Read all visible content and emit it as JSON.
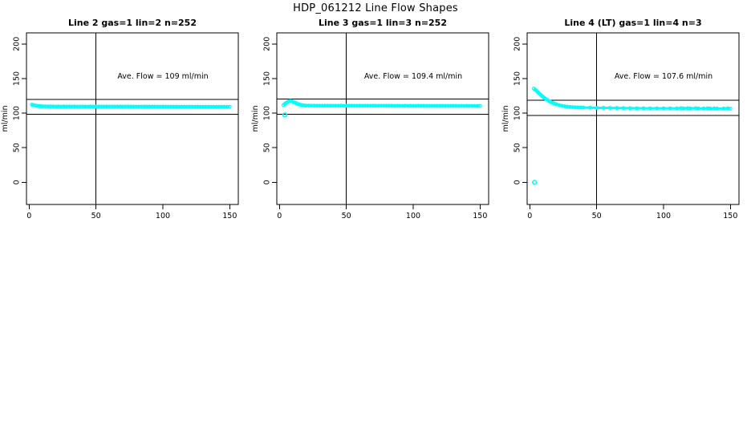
{
  "window": {
    "background": "#ffffff"
  },
  "chart_data": {
    "type": "scatter",
    "title": "HDP_061212  Line Flow Shapes",
    "xlabel": "",
    "ylabel": "ml/min",
    "point_color": "#00ffff",
    "axis_color": "#000000",
    "marker": "open-circle",
    "grid": false,
    "xticks": [
      0,
      50,
      100,
      150
    ],
    "yticks": [
      0,
      50,
      100,
      150,
      200
    ],
    "xlim": [
      -2,
      156.4
    ],
    "ylim": [
      -32,
      216
    ],
    "panels": [
      {
        "title": "Line 2 gas=1 lin=2 n=252",
        "ave_flow": 109,
        "ave_flow_label": "Ave. Flow =  109  ml/min",
        "label_pos": [
          100,
          150
        ],
        "ref_lines_h": [
          119.9,
          98.1
        ],
        "ref_line_v": 50,
        "outliers": [],
        "points": [
          [
            2,
            112.3
          ],
          [
            3,
            111.7
          ],
          [
            4,
            111.2
          ],
          [
            5,
            110.8
          ],
          [
            6,
            110.5
          ],
          [
            7,
            110.3
          ],
          [
            8,
            110.1
          ],
          [
            9,
            110.0
          ],
          [
            10,
            109.9
          ],
          [
            12,
            109.8
          ],
          [
            14,
            109.7
          ],
          [
            16,
            109.6
          ],
          [
            18,
            109.7
          ],
          [
            20,
            109.5
          ],
          [
            22,
            109.6
          ],
          [
            24,
            109.5
          ],
          [
            26,
            109.6
          ],
          [
            28,
            109.5
          ],
          [
            30,
            109.6
          ],
          [
            32,
            109.5
          ],
          [
            34,
            109.6
          ],
          [
            36,
            109.5
          ],
          [
            38,
            109.5
          ],
          [
            40,
            109.6
          ],
          [
            42,
            109.5
          ],
          [
            44,
            109.5
          ],
          [
            46,
            109.6
          ],
          [
            48,
            109.5
          ],
          [
            50,
            109.5
          ],
          [
            52,
            109.6
          ],
          [
            54,
            109.5
          ],
          [
            56,
            109.5
          ],
          [
            58,
            109.6
          ],
          [
            60,
            109.5
          ],
          [
            62,
            109.5
          ],
          [
            64,
            109.5
          ],
          [
            66,
            109.6
          ],
          [
            68,
            109.5
          ],
          [
            70,
            109.5
          ],
          [
            72,
            109.5
          ],
          [
            74,
            109.6
          ],
          [
            76,
            109.5
          ],
          [
            78,
            109.5
          ],
          [
            80,
            109.5
          ],
          [
            82,
            109.4
          ],
          [
            84,
            109.5
          ],
          [
            86,
            109.5
          ],
          [
            88,
            109.4
          ],
          [
            90,
            109.5
          ],
          [
            92,
            109.4
          ],
          [
            94,
            109.5
          ],
          [
            96,
            109.4
          ],
          [
            98,
            109.4
          ],
          [
            100,
            109.5
          ],
          [
            102,
            109.4
          ],
          [
            104,
            109.4
          ],
          [
            106,
            109.4
          ],
          [
            108,
            109.4
          ],
          [
            110,
            109.4
          ],
          [
            112,
            109.3
          ],
          [
            114,
            109.4
          ],
          [
            116,
            109.4
          ],
          [
            118,
            109.3
          ],
          [
            120,
            109.4
          ],
          [
            122,
            109.3
          ],
          [
            124,
            109.3
          ],
          [
            126,
            109.4
          ],
          [
            128,
            109.3
          ],
          [
            130,
            109.3
          ],
          [
            132,
            109.3
          ],
          [
            134,
            109.3
          ],
          [
            136,
            109.3
          ],
          [
            138,
            109.2
          ],
          [
            140,
            109.3
          ],
          [
            142,
            109.2
          ],
          [
            144,
            109.3
          ],
          [
            146,
            109.2
          ],
          [
            148,
            109.2
          ],
          [
            150,
            109.2
          ]
        ]
      },
      {
        "title": "Line 3 gas=1 lin=3 n=252",
        "ave_flow": 109.4,
        "ave_flow_label": "Ave. Flow =  109.4  ml/min",
        "label_pos": [
          100,
          150
        ],
        "ref_lines_h": [
          120.3,
          98.5
        ],
        "ref_line_v": 50,
        "outliers": [
          [
            4,
            97.4
          ]
        ],
        "points": [
          [
            3,
            111.5
          ],
          [
            4,
            113.5
          ],
          [
            5,
            115.0
          ],
          [
            6,
            116.0
          ],
          [
            7,
            117.2
          ],
          [
            8,
            117.6
          ],
          [
            9,
            117.3
          ],
          [
            10,
            116.6
          ],
          [
            11,
            115.7
          ],
          [
            12,
            114.8
          ],
          [
            13,
            113.9
          ],
          [
            14,
            113.1
          ],
          [
            15,
            112.4
          ],
          [
            16,
            111.9
          ],
          [
            17,
            111.5
          ],
          [
            18,
            111.2
          ],
          [
            19,
            111.0
          ],
          [
            20,
            110.9
          ],
          [
            22,
            110.9
          ],
          [
            24,
            110.8
          ],
          [
            26,
            110.8
          ],
          [
            28,
            110.7
          ],
          [
            30,
            110.8
          ],
          [
            32,
            110.7
          ],
          [
            34,
            110.8
          ],
          [
            36,
            110.7
          ],
          [
            38,
            110.8
          ],
          [
            40,
            110.7
          ],
          [
            42,
            110.8
          ],
          [
            44,
            110.7
          ],
          [
            46,
            110.8
          ],
          [
            48,
            110.7
          ],
          [
            50,
            110.8
          ],
          [
            52,
            110.7
          ],
          [
            54,
            110.8
          ],
          [
            56,
            110.7
          ],
          [
            58,
            110.7
          ],
          [
            60,
            110.8
          ],
          [
            62,
            110.7
          ],
          [
            64,
            110.7
          ],
          [
            66,
            110.8
          ],
          [
            68,
            110.7
          ],
          [
            70,
            110.8
          ],
          [
            72,
            110.7
          ],
          [
            74,
            110.7
          ],
          [
            76,
            110.8
          ],
          [
            78,
            110.7
          ],
          [
            80,
            110.7
          ],
          [
            82,
            110.8
          ],
          [
            84,
            110.7
          ],
          [
            86,
            110.6
          ],
          [
            88,
            110.7
          ],
          [
            90,
            110.7
          ],
          [
            92,
            110.6
          ],
          [
            94,
            110.7
          ],
          [
            96,
            110.6
          ],
          [
            98,
            110.7
          ],
          [
            100,
            110.6
          ],
          [
            102,
            110.6
          ],
          [
            104,
            110.7
          ],
          [
            106,
            110.6
          ],
          [
            108,
            110.6
          ],
          [
            110,
            110.6
          ],
          [
            112,
            110.5
          ],
          [
            114,
            110.6
          ],
          [
            116,
            110.6
          ],
          [
            118,
            110.5
          ],
          [
            120,
            110.6
          ],
          [
            122,
            110.5
          ],
          [
            124,
            110.5
          ],
          [
            126,
            110.6
          ],
          [
            128,
            110.5
          ],
          [
            130,
            110.5
          ],
          [
            132,
            110.5
          ],
          [
            134,
            110.4
          ],
          [
            136,
            110.5
          ],
          [
            138,
            110.4
          ],
          [
            140,
            110.5
          ],
          [
            142,
            110.4
          ],
          [
            144,
            110.4
          ],
          [
            146,
            110.4
          ],
          [
            148,
            110.4
          ],
          [
            150,
            110.4
          ]
        ]
      },
      {
        "title": "Line 4 (LT) gas=1 lin=4 n=3",
        "ave_flow": 107.6,
        "ave_flow_label": "Ave. Flow =  107.6  ml/min",
        "label_pos": [
          100,
          150
        ],
        "ref_lines_h": [
          118.4,
          96.8
        ],
        "ref_line_v": 50,
        "outliers": [
          [
            3.5,
            0
          ]
        ],
        "points": [
          [
            3,
            135.5
          ],
          [
            4,
            134.0
          ],
          [
            5,
            132.2
          ],
          [
            6,
            130.3
          ],
          [
            7,
            128.4
          ],
          [
            8,
            126.6
          ],
          [
            9,
            124.9
          ],
          [
            10,
            123.3
          ],
          [
            11,
            121.8
          ],
          [
            12,
            120.4
          ],
          [
            13,
            119.1
          ],
          [
            14,
            117.9
          ],
          [
            15,
            116.8
          ],
          [
            16,
            115.8
          ],
          [
            17,
            114.9
          ],
          [
            18,
            114.1
          ],
          [
            19,
            113.4
          ],
          [
            20,
            112.7
          ],
          [
            22,
            111.6
          ],
          [
            24,
            110.7
          ],
          [
            26,
            110.0
          ],
          [
            28,
            109.4
          ],
          [
            30,
            109.0
          ],
          [
            32,
            108.7
          ],
          [
            34,
            108.5
          ],
          [
            36,
            108.3
          ],
          [
            38,
            108.2
          ],
          [
            40,
            108.1
          ],
          [
            45,
            107.9
          ],
          [
            50,
            107.7
          ],
          [
            55,
            107.6
          ],
          [
            60,
            107.5
          ],
          [
            65,
            107.4
          ],
          [
            70,
            107.3
          ],
          [
            75,
            107.2
          ],
          [
            80,
            107.1
          ],
          [
            85,
            107.1
          ],
          [
            90,
            107.0
          ],
          [
            95,
            107.0
          ],
          [
            100,
            106.9
          ],
          [
            105,
            106.9
          ],
          [
            110,
            106.8
          ],
          [
            113,
            107.2
          ],
          [
            115,
            106.8
          ],
          [
            118,
            107.1
          ],
          [
            120,
            106.8
          ],
          [
            124,
            107.2
          ],
          [
            126,
            106.7
          ],
          [
            130,
            106.7
          ],
          [
            133,
            107.1
          ],
          [
            135,
            106.7
          ],
          [
            138,
            107.0
          ],
          [
            140,
            106.6
          ],
          [
            145,
            106.6
          ],
          [
            148,
            106.9
          ],
          [
            150,
            106.5
          ]
        ]
      }
    ]
  }
}
